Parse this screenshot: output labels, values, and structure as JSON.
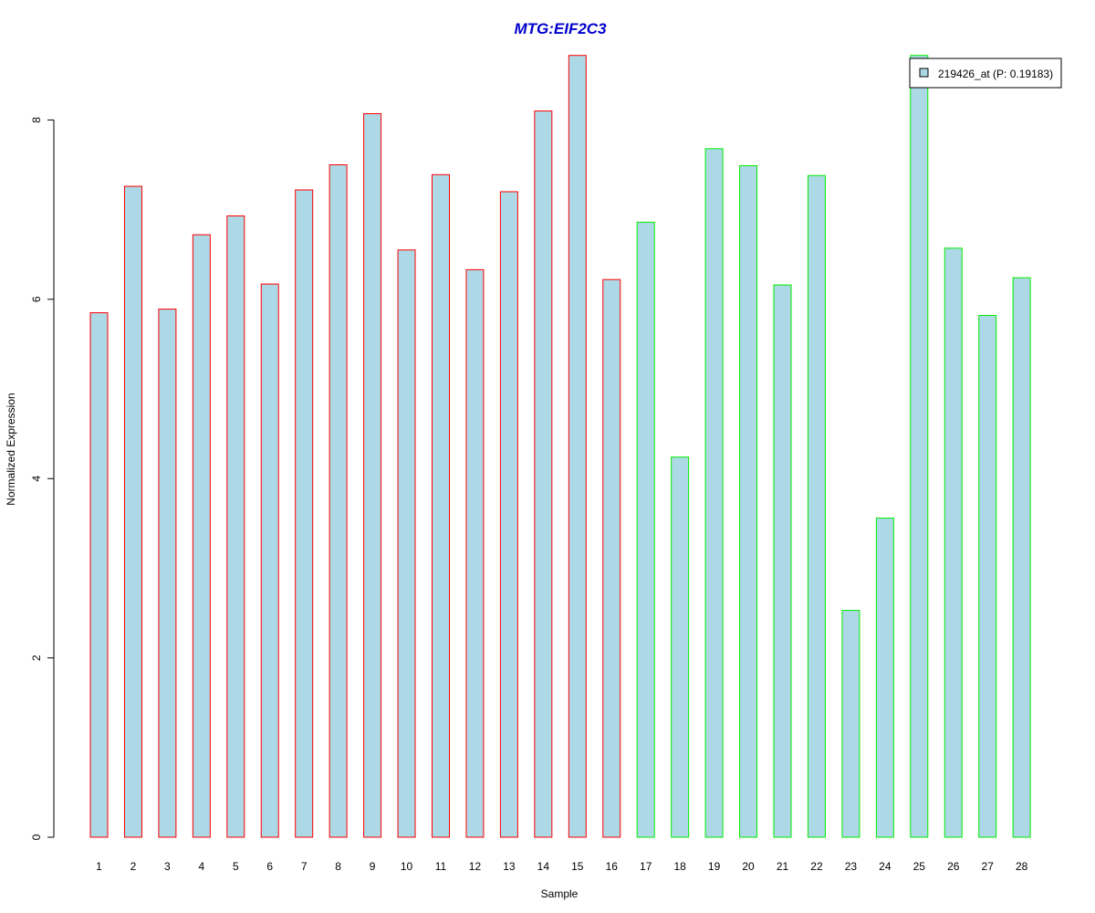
{
  "chart_data": {
    "type": "bar",
    "title": "MTG:EIF2C3",
    "xlabel": "Sample",
    "ylabel": "Normalized Expression",
    "ylim": [
      0,
      8.75
    ],
    "yticks": [
      0,
      2,
      4,
      6,
      8
    ],
    "categories": [
      "1",
      "2",
      "3",
      "4",
      "5",
      "6",
      "7",
      "8",
      "9",
      "10",
      "11",
      "12",
      "13",
      "14",
      "15",
      "16",
      "17",
      "18",
      "19",
      "20",
      "21",
      "22",
      "23",
      "24",
      "25",
      "26",
      "27",
      "28"
    ],
    "series": [
      {
        "name": "219426_at (P: 0.19183)",
        "values": [
          5.85,
          7.26,
          5.89,
          6.72,
          6.93,
          6.17,
          7.22,
          7.5,
          8.07,
          6.55,
          7.39,
          6.33,
          7.2,
          8.1,
          8.72,
          6.22,
          6.86,
          4.24,
          7.68,
          7.49,
          6.16,
          7.38,
          2.53,
          3.56,
          8.72,
          6.57,
          5.82,
          6.24
        ]
      }
    ],
    "groups": [
      {
        "start": 1,
        "end": 16,
        "border_color": "#ff0000"
      },
      {
        "start": 17,
        "end": 28,
        "border_color": "#00ee00"
      }
    ],
    "bar_fill": "#add8e6",
    "title_color": "#0000cd",
    "legend_position": "top-right",
    "grid": false
  }
}
